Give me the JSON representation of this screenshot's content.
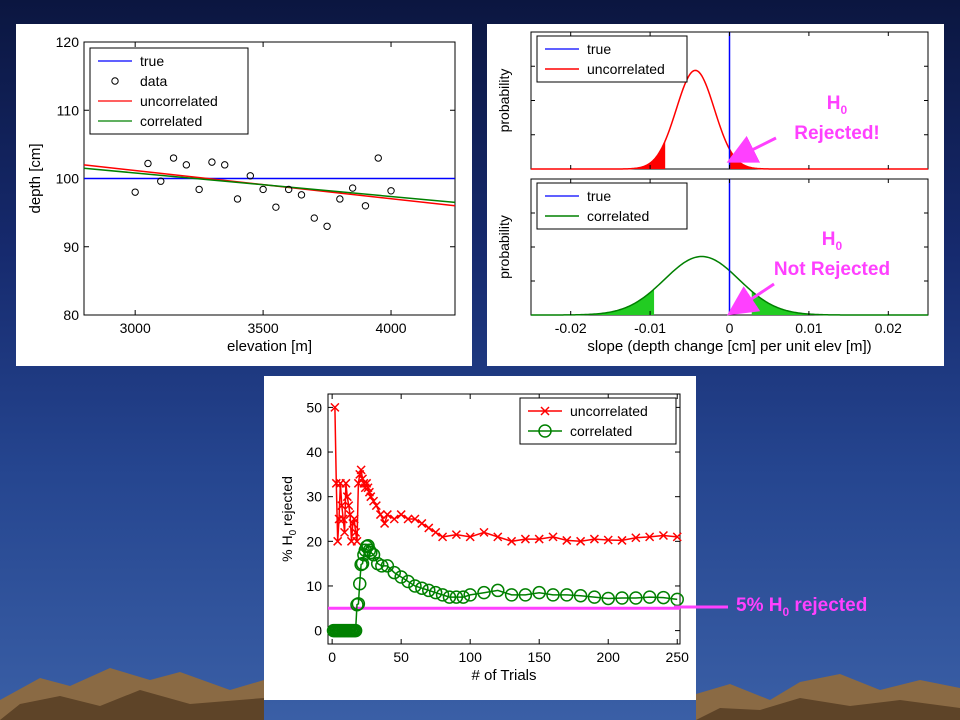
{
  "annotations": {
    "h0": "H",
    "h0_sub": "0",
    "rejected": "Rejected!",
    "not_rejected": "Not Rejected",
    "five_pct_prefix": "5% H",
    "five_pct_suffix": " rejected"
  },
  "colors": {
    "true": "#0000ff",
    "uncorrelated": "#ff0000",
    "correlated": "#008000",
    "annotation": "#ff40ff"
  },
  "chart_data": [
    {
      "type": "scatter",
      "xlabel": "elevation [m]",
      "ylabel": "depth [cm]",
      "xlim": [
        2800,
        4250
      ],
      "ylim": [
        80,
        120
      ],
      "xticks": [
        3000,
        3500,
        4000
      ],
      "yticks": [
        80,
        90,
        100,
        110,
        120
      ],
      "legend": [
        "true",
        "data",
        "uncorrelated",
        "correlated"
      ],
      "legend_position": "top-left",
      "data": {
        "x": [
          3000,
          3050,
          3100,
          3150,
          3200,
          3250,
          3300,
          3350,
          3400,
          3450,
          3500,
          3550,
          3600,
          3650,
          3700,
          3750,
          3800,
          3850,
          3900,
          3950,
          4000
        ],
        "y": [
          98,
          102.2,
          99.6,
          103,
          102,
          98.4,
          102.4,
          102,
          97,
          100.4,
          98.4,
          95.8,
          98.4,
          97.6,
          94.2,
          93,
          97,
          98.6,
          96,
          103,
          98.2
        ]
      },
      "lines": [
        {
          "name": "true",
          "x": [
            2800,
            4250
          ],
          "y": [
            100,
            100
          ]
        },
        {
          "name": "uncorrelated",
          "x": [
            2800,
            4250
          ],
          "y": [
            102,
            96
          ]
        },
        {
          "name": "correlated",
          "x": [
            2800,
            4250
          ],
          "y": [
            101.5,
            96.5
          ]
        }
      ]
    },
    {
      "type": "area",
      "ylabel": "probability",
      "xlim": [
        -0.025,
        0.025
      ],
      "legend": [
        "true",
        "uncorrelated"
      ],
      "legend_position": "top-left",
      "true_slope": 0,
      "distribution": {
        "name": "uncorrelated",
        "mean": -0.0043,
        "sd": 0.0024
      },
      "shaded_tails": [
        [
          -0.025,
          -0.0081
        ],
        [
          0,
          0.025
        ]
      ]
    },
    {
      "type": "area",
      "ylabel": "probability",
      "xlabel": "slope (depth change [cm] per unit elev [m])",
      "xlim": [
        -0.025,
        0.025
      ],
      "xticks": [
        -0.02,
        -0.01,
        0,
        0.01,
        0.02
      ],
      "xtick_labels": [
        "-0.02",
        "-0.01",
        "0",
        "0.01",
        "0.02"
      ],
      "legend": [
        "true",
        "correlated"
      ],
      "legend_position": "top-left",
      "true_slope": 0,
      "distribution": {
        "name": "correlated",
        "mean": -0.0035,
        "sd": 0.0047
      },
      "shaded_tails": [
        [
          -0.025,
          -0.0095
        ],
        [
          0.0028,
          0.025
        ]
      ]
    },
    {
      "type": "line",
      "xlabel": "# of Trials",
      "ylabel": "% H0 rejected",
      "ylabel_main": "% H",
      "ylabel_sub": "0",
      "ylabel_suffix": " rejected",
      "xlim": [
        -3,
        252
      ],
      "ylim": [
        -3,
        53
      ],
      "xticks": [
        0,
        50,
        100,
        150,
        200,
        250
      ],
      "yticks": [
        0,
        10,
        20,
        30,
        40,
        50
      ],
      "legend_position": "top-right",
      "reference_line": {
        "label": "5% H0 rejected",
        "y": 5
      },
      "series": [
        {
          "name": "uncorrelated",
          "marker": "x",
          "x": [
            2,
            3,
            4,
            5,
            6,
            7,
            8,
            9,
            10,
            11,
            12,
            13,
            14,
            15,
            16,
            17,
            18,
            19,
            20,
            21,
            22,
            23,
            24,
            25,
            26,
            27,
            28,
            30,
            32,
            35,
            38,
            40,
            45,
            50,
            55,
            60,
            65,
            70,
            75,
            80,
            90,
            100,
            110,
            120,
            130,
            140,
            150,
            160,
            170,
            180,
            190,
            200,
            210,
            220,
            230,
            240,
            250
          ],
          "y": [
            50,
            33,
            20,
            25,
            33,
            28,
            25,
            22,
            33,
            30,
            28,
            26,
            20,
            24,
            25,
            22,
            20,
            33,
            35,
            36,
            34,
            33,
            32,
            33,
            32,
            31,
            30,
            29,
            28,
            26,
            24,
            26,
            25,
            26,
            25,
            25,
            24,
            23,
            22,
            21,
            21.5,
            21,
            22,
            21,
            20,
            20.5,
            20.5,
            21,
            20.2,
            20,
            20.5,
            20.3,
            20.2,
            20.8,
            21,
            21.3,
            21
          ]
        },
        {
          "name": "correlated",
          "marker": "o",
          "x": [
            1,
            2,
            3,
            4,
            5,
            6,
            7,
            8,
            9,
            10,
            11,
            12,
            13,
            14,
            15,
            16,
            17,
            18,
            19,
            20,
            21,
            22,
            23,
            24,
            25,
            26,
            27,
            28,
            30,
            33,
            36,
            40,
            45,
            50,
            55,
            60,
            65,
            70,
            75,
            80,
            85,
            90,
            95,
            100,
            110,
            120,
            130,
            140,
            150,
            160,
            170,
            180,
            190,
            200,
            210,
            220,
            230,
            240,
            250
          ],
          "y": [
            0,
            0,
            0,
            0,
            0,
            0,
            0,
            0,
            0,
            0,
            0,
            0,
            0,
            0,
            0,
            0,
            0,
            5.8,
            6,
            10.5,
            14.8,
            15,
            17,
            18,
            18.8,
            19,
            18,
            17.5,
            17,
            15,
            14.5,
            14.5,
            13,
            12,
            11,
            10,
            9.5,
            9,
            8.5,
            8,
            7.5,
            7.5,
            7.5,
            8,
            8.5,
            9,
            8,
            8,
            8.5,
            8,
            8,
            7.8,
            7.5,
            7.2,
            7.3,
            7.3,
            7.5,
            7.4,
            7
          ]
        }
      ]
    }
  ]
}
